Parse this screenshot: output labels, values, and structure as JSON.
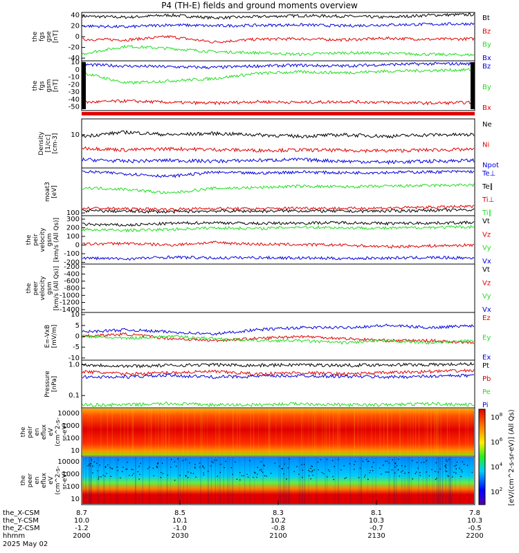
{
  "title": "P4 (TH-E) fields and ground moments overview",
  "date_label": "2025 May 02",
  "xaxis": {
    "rows": [
      {
        "label": "the_X-CSM",
        "values": [
          "8.7",
          "8.5",
          "8.3",
          "8.1",
          "7.8"
        ]
      },
      {
        "label": "the_Y-CSM",
        "values": [
          "10.0",
          "10.1",
          "10.2",
          "10.3",
          "10.3"
        ]
      },
      {
        "label": "the_Z-CSM",
        "values": [
          "-1.2",
          "-1.0",
          "-0.8",
          "-0.7",
          "-0.5"
        ]
      },
      {
        "label": "hhmm",
        "values": [
          "2000",
          "2030",
          "2100",
          "2130",
          "2200"
        ]
      }
    ]
  },
  "colors": {
    "black": "#000000",
    "red": "#e00000",
    "green": "#22dd22",
    "blue": "#0000dd"
  },
  "chart_data": [
    {
      "type": "line",
      "ylabel": [
        "the",
        "fgs",
        "gse",
        "[nT]"
      ],
      "yticks": [
        40,
        20,
        0,
        -20,
        -40
      ],
      "ylim": [
        -45,
        45
      ],
      "series": [
        {
          "name": "Bt",
          "color": "black",
          "values": [
            38,
            36,
            40,
            35,
            37,
            39,
            38,
            36,
            40,
            41
          ]
        },
        {
          "name": "Bz",
          "color": "red",
          "values": [
            -5,
            -6,
            0,
            -10,
            -5,
            -4,
            -6,
            -3,
            -5,
            -4
          ]
        },
        {
          "name": "By",
          "color": "green",
          "values": [
            -32,
            -18,
            -22,
            -28,
            -30,
            -33,
            -30,
            -31,
            -33,
            -34
          ]
        },
        {
          "name": "Bx",
          "color": "blue",
          "values": [
            20,
            18,
            22,
            20,
            21,
            22,
            20,
            22,
            23,
            24
          ]
        }
      ],
      "legend": [
        "Bt",
        "Bz",
        "By",
        "Bx"
      ]
    },
    {
      "type": "line",
      "ylabel": [
        "the",
        "fgs",
        "gsm",
        "[nT]"
      ],
      "yticks": [
        10,
        0,
        -10,
        -20,
        -30,
        -40,
        -50
      ],
      "ylim": [
        -55,
        12
      ],
      "series": [
        {
          "name": "Bz",
          "color": "blue",
          "values": [
            7,
            5,
            4,
            3,
            5,
            6,
            5,
            7,
            8,
            8
          ]
        },
        {
          "name": "By",
          "color": "green",
          "values": [
            -4,
            -18,
            -15,
            -12,
            -5,
            -3,
            -4,
            -2,
            -1,
            0
          ]
        },
        {
          "name": "Bx",
          "color": "red",
          "values": [
            -44,
            -42,
            -44,
            -45,
            -43,
            -44,
            -43,
            -44,
            -45,
            -44
          ]
        }
      ],
      "legend": [
        "Bz",
        "By",
        "Bx"
      ]
    },
    {
      "type": "line",
      "ylabel": [
        "Density",
        "[1/cc]",
        "[cm-3]"
      ],
      "yticks": [
        "10"
      ],
      "ylim": [
        1,
        30
      ],
      "series": [
        {
          "name": "Ne",
          "color": "black",
          "values": [
            9,
            12,
            10,
            11,
            10,
            9,
            10,
            9,
            10,
            10
          ]
        },
        {
          "name": "Ni",
          "color": "red",
          "values": [
            4,
            3.5,
            3.8,
            3.6,
            3.4,
            3.5,
            3.4,
            3.3,
            3.5,
            3.6
          ]
        },
        {
          "name": "Npot",
          "color": "blue",
          "values": [
            1.8,
            1.6,
            1.7,
            1.6,
            1.7,
            1.8,
            1.6,
            1.5,
            1.6,
            1.7
          ]
        }
      ],
      "legend": [
        "Ne",
        "Ni",
        "Npot"
      ]
    },
    {
      "type": "line",
      "ylabel": [
        "moat3",
        "[eV]"
      ],
      "yticks": [
        "100"
      ],
      "ylim": [
        80,
        4000
      ],
      "series": [
        {
          "name": "Te⊥",
          "color": "blue",
          "values": [
            3000,
            2500,
            2000,
            2800,
            2600,
            2900,
            2700,
            2800,
            2900,
            3000
          ]
        },
        {
          "name": "Te∥",
          "color": "black",
          "values": [
            120,
            115,
            110,
            118,
            116,
            120,
            115,
            118,
            125,
            130
          ]
        },
        {
          "name": "Ti⊥",
          "color": "red",
          "values": [
            150,
            140,
            135,
            145,
            140,
            150,
            145,
            150,
            160,
            170
          ]
        },
        {
          "name": "Ti∥",
          "color": "green",
          "values": [
            800,
            700,
            500,
            750,
            800,
            900,
            850,
            900,
            950,
            1000
          ]
        }
      ],
      "legend": [
        "Te⊥",
        "Te∥",
        "Ti⊥",
        "Ti∥"
      ]
    },
    {
      "type": "line",
      "ylabel": [
        "the",
        "peir",
        "velocity",
        "gsm",
        "[km/s (All Qs)]"
      ],
      "yticks": [
        300,
        200,
        100,
        0,
        -100,
        -200
      ],
      "ylim": [
        -220,
        340
      ],
      "series": [
        {
          "name": "Vt",
          "color": "black",
          "values": [
            240,
            230,
            250,
            260,
            250,
            255,
            260,
            250,
            255,
            260
          ]
        },
        {
          "name": "Vz",
          "color": "red",
          "values": [
            10,
            20,
            0,
            30,
            10,
            5,
            0,
            -20,
            -10,
            0
          ]
        },
        {
          "name": "Vy",
          "color": "green",
          "values": [
            180,
            170,
            180,
            200,
            190,
            210,
            200,
            195,
            205,
            210
          ]
        },
        {
          "name": "Vx",
          "color": "blue",
          "values": [
            -150,
            -160,
            -140,
            -150,
            -145,
            -150,
            -155,
            -150,
            -145,
            -150
          ]
        }
      ],
      "legend": [
        "Vt",
        "Vz",
        "Vy",
        "Vx"
      ]
    },
    {
      "type": "line",
      "ylabel": [
        "the",
        "peer",
        "velocity",
        "gsm",
        "[km/s (All Qs)]"
      ],
      "yticks": [
        -200,
        -400,
        -600,
        -800,
        -1000,
        -1200,
        -1400
      ],
      "ylim": [
        -1480,
        -120
      ],
      "series": [],
      "legend": [
        "Vt",
        "Vz",
        "Vy",
        "Vx"
      ]
    },
    {
      "type": "line",
      "ylabel": [
        "E=-VxB",
        "[mV/m]"
      ],
      "yticks": [
        10,
        5,
        0,
        -5,
        -10
      ],
      "ylim": [
        -11,
        11
      ],
      "series": [
        {
          "name": "Ez",
          "color": "red",
          "values": [
            0,
            1,
            -1,
            -2,
            -1,
            0,
            -1,
            -2,
            -2,
            -3
          ]
        },
        {
          "name": "Ey",
          "color": "green",
          "values": [
            0,
            -1,
            0,
            -1,
            -2,
            -2,
            -3,
            -2,
            -3,
            -2
          ]
        },
        {
          "name": "Ex",
          "color": "blue",
          "values": [
            2,
            3,
            2,
            1,
            3,
            4,
            4,
            5,
            4,
            5
          ]
        }
      ],
      "legend": [
        "Ez",
        "Ey",
        "Ex"
      ]
    },
    {
      "type": "line",
      "ylabel": [
        "Pressure",
        "[nPa]"
      ],
      "yticks": [
        "1.0",
        "0.1"
      ],
      "ylim": [
        0.04,
        1.4
      ],
      "series": [
        {
          "name": "Pt",
          "color": "black",
          "values": [
            1.0,
            0.9,
            0.95,
            1.0,
            0.95,
            1.0,
            0.95,
            1.0,
            1.0,
            1.05
          ]
        },
        {
          "name": "Pb",
          "color": "red",
          "values": [
            0.6,
            0.5,
            0.55,
            0.6,
            0.5,
            0.55,
            0.5,
            0.55,
            0.6,
            0.65
          ]
        },
        {
          "name": "Pe",
          "color": "green",
          "values": [
            0.05,
            0.05,
            0.055,
            0.05,
            0.05,
            0.055,
            0.05,
            0.05,
            0.055,
            0.05
          ]
        },
        {
          "name": "Pi",
          "color": "blue",
          "values": [
            0.4,
            0.4,
            0.45,
            0.4,
            0.42,
            0.44,
            0.42,
            0.4,
            0.42,
            0.45
          ]
        }
      ],
      "legend": [
        "Pt",
        "Pb",
        "Pe",
        "Pi"
      ]
    },
    {
      "type": "heatmap",
      "ylabel": [
        "the",
        "peir",
        "en",
        "eflux",
        "eV",
        "(cm^2-s-",
        "sr-eV)"
      ],
      "yticks": [
        "10000",
        "1000",
        "100",
        "10"
      ]
    },
    {
      "type": "heatmap",
      "ylabel": [
        "the",
        "peer",
        "en",
        "eflux",
        "eV",
        "(cm^2-s-",
        "sr-eV)"
      ],
      "yticks": [
        "10000",
        "1000",
        "100",
        "10"
      ]
    }
  ],
  "colorbar": {
    "label": "[eV/(cm^2-s-sr-eV)] (All Qs)",
    "tick_exponents": [
      "8",
      "6",
      "4",
      "2"
    ],
    "tick_base": "10"
  }
}
